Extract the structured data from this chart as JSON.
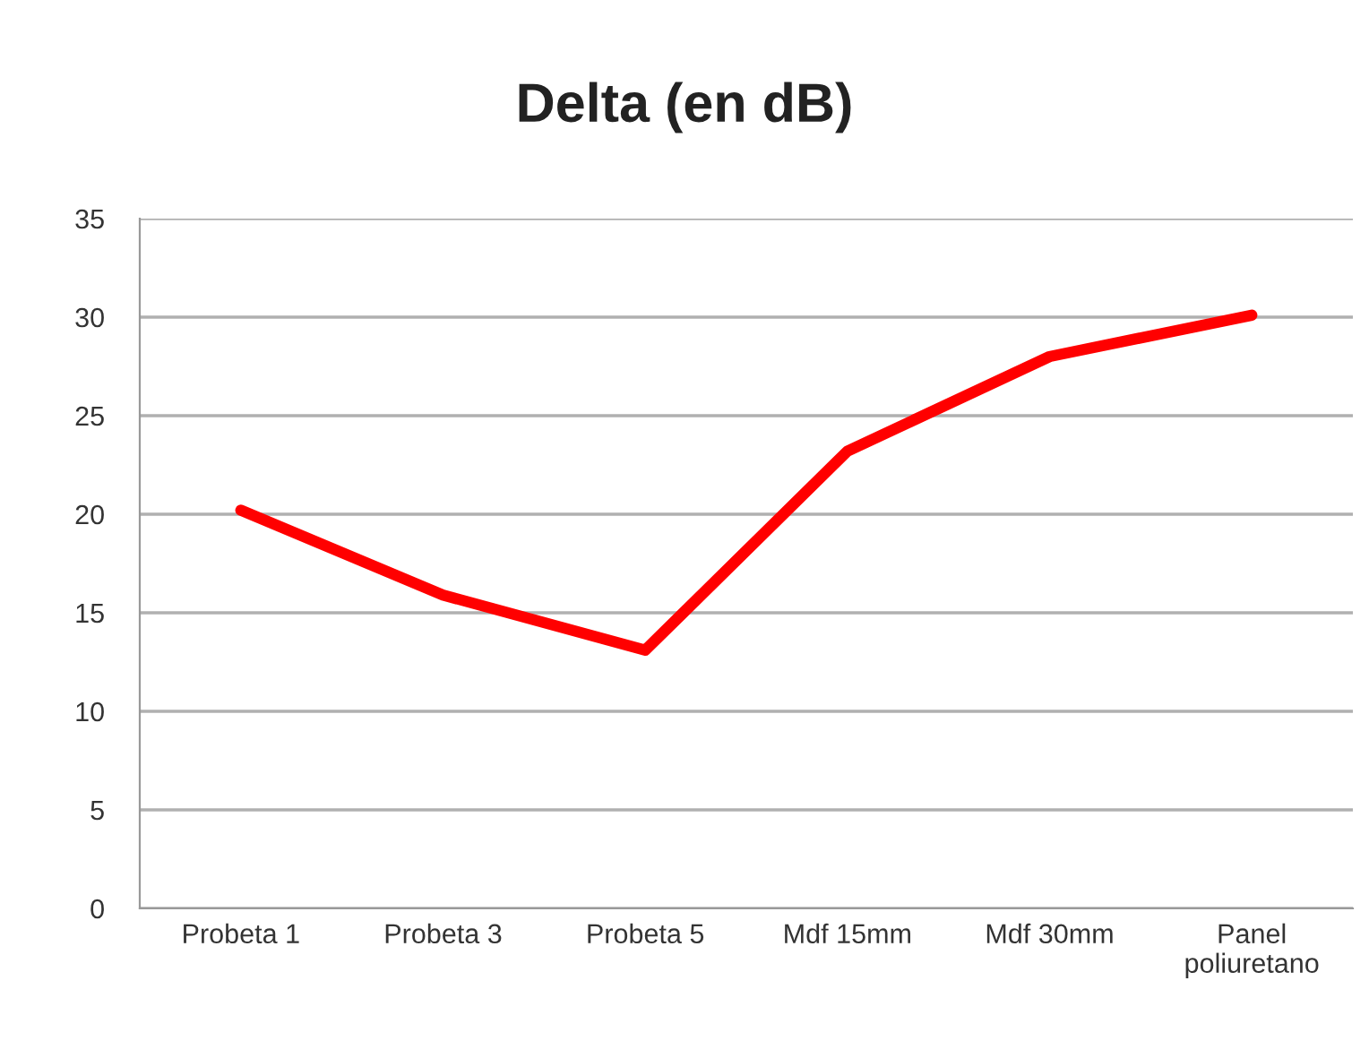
{
  "chart_data": {
    "type": "line",
    "title": "Delta (en dB)",
    "categories": [
      "Probeta 1",
      "Probeta 3",
      "Probeta 5",
      "Mdf 15mm",
      "Mdf 30mm",
      "Panel\npoliuretano"
    ],
    "series": [
      {
        "color": "#ff0000",
        "values": [
          20.2,
          15.9,
          13.1,
          23.2,
          28.0,
          30.1
        ]
      }
    ],
    "ylim": [
      0,
      35
    ],
    "yticks": [
      0,
      5,
      10,
      15,
      20,
      25,
      30,
      35
    ],
    "grid": "y",
    "marker": "none",
    "line_style": "solid"
  }
}
